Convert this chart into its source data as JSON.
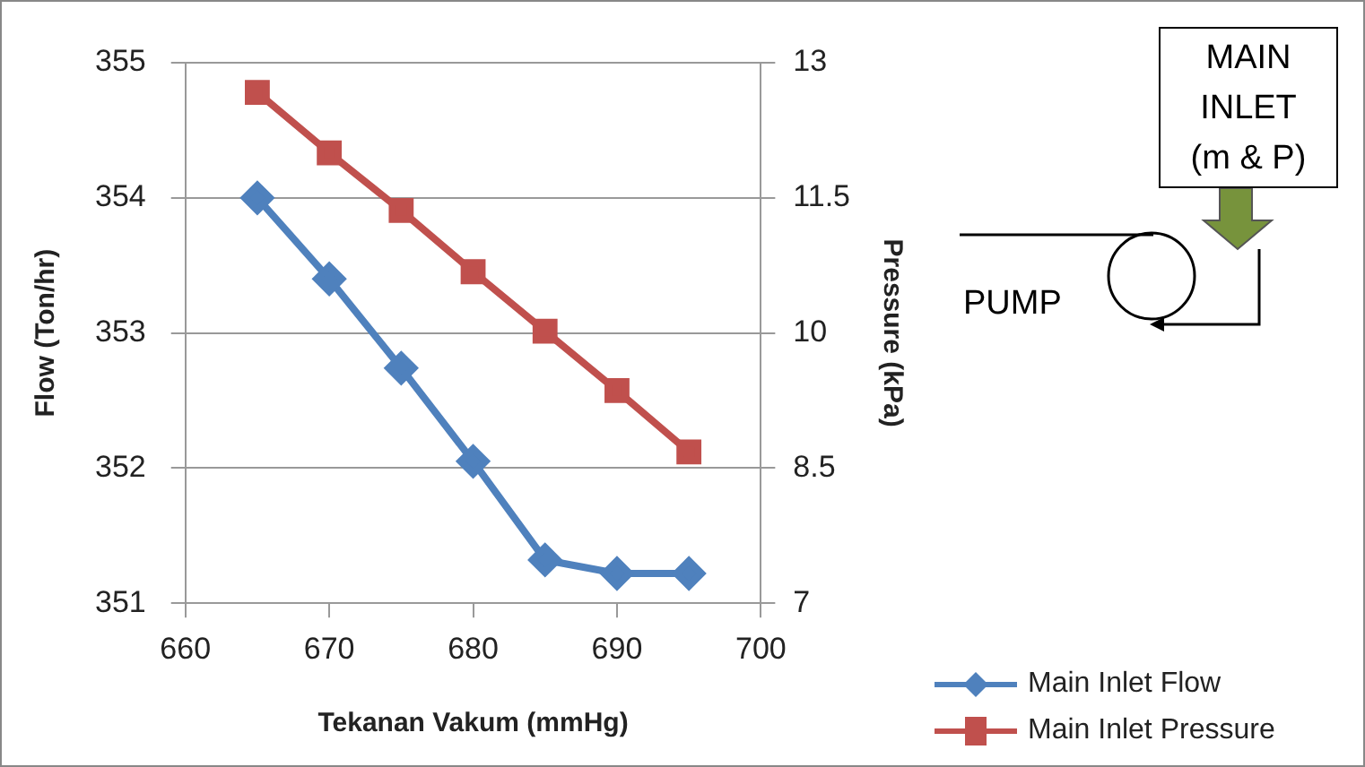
{
  "chart_data": {
    "type": "line",
    "xlabel": "Tekanan Vakum (mmHg)",
    "ylabel": "Flow (Ton/hr)",
    "y2label": "Pressure (kPa)",
    "x": [
      665,
      670,
      675,
      680,
      685,
      690,
      695
    ],
    "series": [
      {
        "name": "Main Inlet Flow",
        "color": "#4f81bd",
        "marker": "diamond",
        "values": [
          354.0,
          353.4,
          352.74,
          352.05,
          351.32,
          351.22,
          351.22
        ]
      },
      {
        "name": "Main Inlet Pressure",
        "color": "#c0504d",
        "marker": "square",
        "axis": "y2",
        "values": [
          12.67,
          12.0,
          11.36,
          10.68,
          10.02,
          9.36,
          8.68
        ]
      }
    ],
    "xlim": [
      660,
      700
    ],
    "xticks": [
      660,
      670,
      680,
      690,
      700
    ],
    "ylim": [
      351,
      355
    ],
    "yticks": [
      351,
      352,
      353,
      354,
      355
    ],
    "y2lim": [
      7,
      13
    ],
    "y2ticks": [
      7,
      8.5,
      10,
      11.5,
      13
    ],
    "grid": "y",
    "legend": "bottom right",
    "annotations": [
      "MAIN INLET (m & P)",
      "PUMP"
    ]
  }
}
